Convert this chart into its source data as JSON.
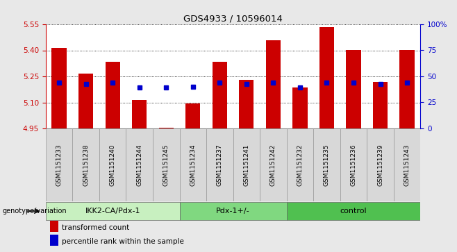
{
  "title": "GDS4933 / 10596014",
  "samples": [
    "GSM1151233",
    "GSM1151238",
    "GSM1151240",
    "GSM1151244",
    "GSM1151245",
    "GSM1151234",
    "GSM1151237",
    "GSM1151241",
    "GSM1151242",
    "GSM1151232",
    "GSM1151235",
    "GSM1151236",
    "GSM1151239",
    "GSM1151243"
  ],
  "bar_tops": [
    5.415,
    5.265,
    5.335,
    5.115,
    4.955,
    5.095,
    5.335,
    5.23,
    5.46,
    5.185,
    5.535,
    5.4,
    5.22,
    5.4
  ],
  "blue_markers": [
    5.215,
    5.205,
    5.215,
    5.185,
    5.185,
    5.19,
    5.215,
    5.205,
    5.215,
    5.185,
    5.215,
    5.215,
    5.205,
    5.215
  ],
  "bar_bottom": 4.95,
  "ylim_left": [
    4.95,
    5.55
  ],
  "ylim_right": [
    0,
    100
  ],
  "yticks_left": [
    4.95,
    5.1,
    5.25,
    5.4,
    5.55
  ],
  "yticks_right": [
    0,
    25,
    50,
    75,
    100
  ],
  "groups": [
    {
      "label": "IKK2-CA/Pdx-1",
      "start": 0,
      "end": 5
    },
    {
      "label": "Pdx-1+/-",
      "start": 5,
      "end": 9
    },
    {
      "label": "control",
      "start": 9,
      "end": 14
    }
  ],
  "group_colors": [
    "#c8f0c0",
    "#80d880",
    "#50c050"
  ],
  "bar_color": "#cc0000",
  "marker_color": "#0000cc",
  "bg_color": "#e8e8e8",
  "plot_bg": "#ffffff",
  "left_label_color": "#cc0000",
  "right_label_color": "#0000cc",
  "legend_items": [
    {
      "label": "transformed count",
      "color": "#cc0000"
    },
    {
      "label": "percentile rank within the sample",
      "color": "#0000cc"
    }
  ],
  "genotype_label": "genotype/variation",
  "bar_width": 0.55
}
